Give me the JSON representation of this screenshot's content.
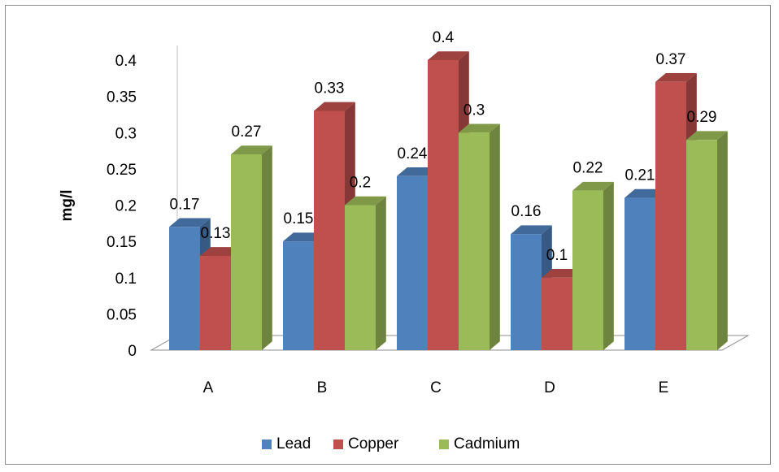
{
  "chart_data": {
    "type": "bar",
    "style": "3d-clustered-column",
    "ylabel": "mg/l",
    "xlabel": "",
    "title": "",
    "categories": [
      "A",
      "B",
      "C",
      "D",
      "E"
    ],
    "ylim": [
      0,
      0.4
    ],
    "yticks": [
      0,
      0.05,
      0.1,
      0.15,
      0.2,
      0.25,
      0.3,
      0.35,
      0.4
    ],
    "ytick_labels": [
      "0",
      "0.05",
      "0.1",
      "0.15",
      "0.2",
      "0.25",
      "0.3",
      "0.35",
      "0.4"
    ],
    "grid": false,
    "legend_position": "bottom",
    "series": [
      {
        "name": "Lead",
        "color": "#4f81bd",
        "values": [
          0.17,
          0.15,
          0.24,
          0.16,
          0.21
        ],
        "labels": [
          "0.17",
          "0.15",
          "0.24",
          "0.16",
          "0.21"
        ]
      },
      {
        "name": "Copper",
        "color": "#c0504d",
        "values": [
          0.13,
          0.33,
          0.4,
          0.1,
          0.37
        ],
        "labels": [
          "0.13",
          "0.33",
          "0.4",
          "0.1",
          "0.37"
        ]
      },
      {
        "name": "Cadmium",
        "color": "#9bbb59",
        "values": [
          0.27,
          0.2,
          0.3,
          0.22,
          0.29
        ],
        "labels": [
          "0.27",
          "0.2",
          "0.3",
          "0.22",
          "0.29"
        ]
      }
    ]
  }
}
